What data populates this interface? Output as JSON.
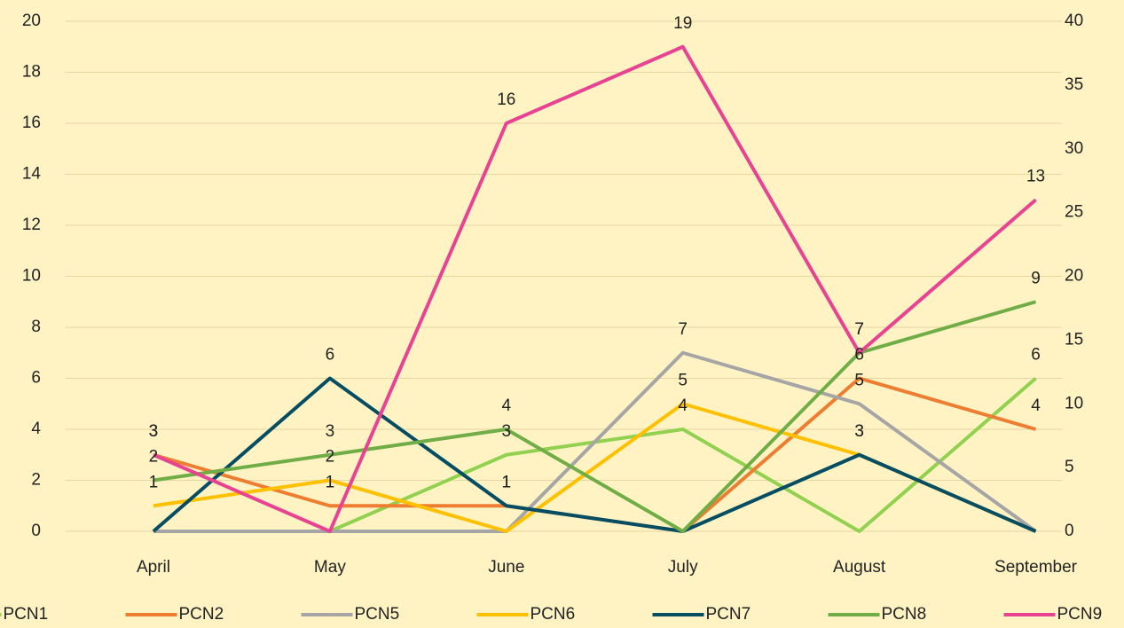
{
  "chart_data": {
    "type": "line",
    "categories": [
      "April",
      "May",
      "June",
      "July",
      "August",
      "September"
    ],
    "series": [
      {
        "name": "PCN1",
        "color": "#92d050",
        "values": [
          0,
          0,
          3,
          4,
          0,
          6
        ]
      },
      {
        "name": "PCN2",
        "color": "#ed7d31",
        "values": [
          3,
          1,
          1,
          0,
          6,
          4
        ]
      },
      {
        "name": "PCN5",
        "color": "#a5a5a5",
        "values": [
          0,
          0,
          0,
          7,
          5,
          0
        ]
      },
      {
        "name": "PCN6",
        "color": "#ffc000",
        "values": [
          1,
          2,
          0,
          5,
          3,
          0
        ]
      },
      {
        "name": "PCN7",
        "color": "#044d63",
        "values": [
          0,
          6,
          1,
          0,
          3,
          0
        ]
      },
      {
        "name": "PCN8",
        "color": "#70ad47",
        "values": [
          2,
          3,
          4,
          0,
          7,
          9
        ]
      },
      {
        "name": "PCN9",
        "color": "#e84393",
        "values": [
          3,
          0,
          16,
          19,
          7,
          13
        ]
      }
    ],
    "ylim": [
      0,
      20
    ],
    "yticks": [
      0,
      2,
      4,
      6,
      8,
      10,
      12,
      14,
      16,
      18,
      20
    ],
    "y2lim": [
      0,
      40
    ],
    "y2ticks": [
      0,
      5,
      10,
      15,
      20,
      25,
      30,
      35,
      40
    ],
    "grid": true,
    "legend": "bottom"
  }
}
